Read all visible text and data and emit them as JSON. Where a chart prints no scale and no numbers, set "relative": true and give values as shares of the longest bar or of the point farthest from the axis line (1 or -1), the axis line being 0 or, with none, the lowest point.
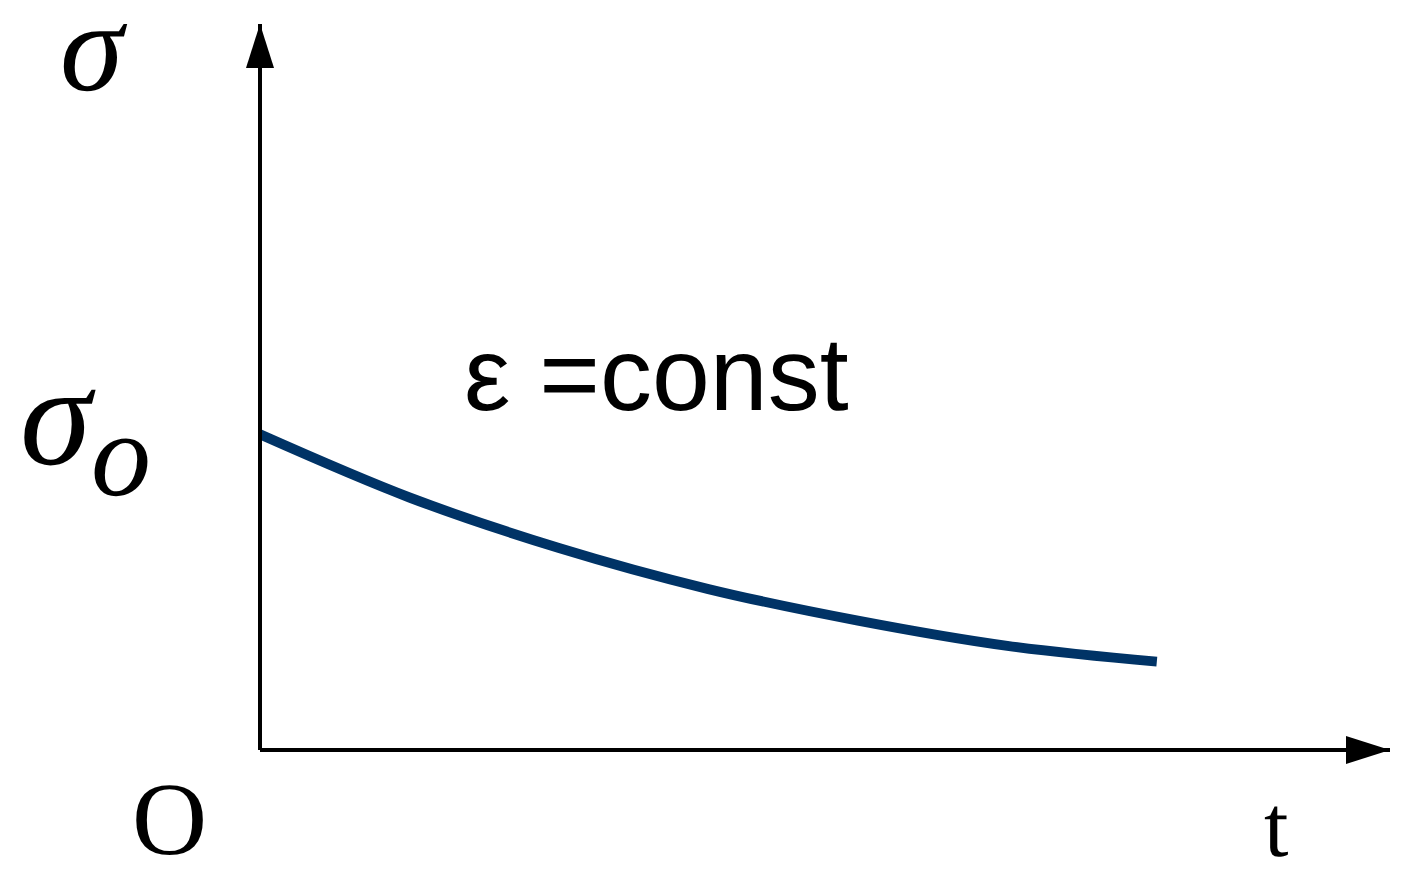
{
  "chart_data": {
    "type": "line",
    "relative": true,
    "ylabel": "σ",
    "xlabel": "t",
    "categories": [
      null,
      null,
      null,
      null,
      null,
      null,
      null
    ],
    "series": [
      {
        "color": "#003366",
        "values": [
          1,
          0.8,
          0.64,
          0.51,
          0.41,
          0.33,
          0.28
        ]
      }
    ],
    "annotations": [
      "σ$_{o}$",
      "ε =const",
      "O"
    ],
    "marker": "none",
    "line_style": "solid"
  }
}
